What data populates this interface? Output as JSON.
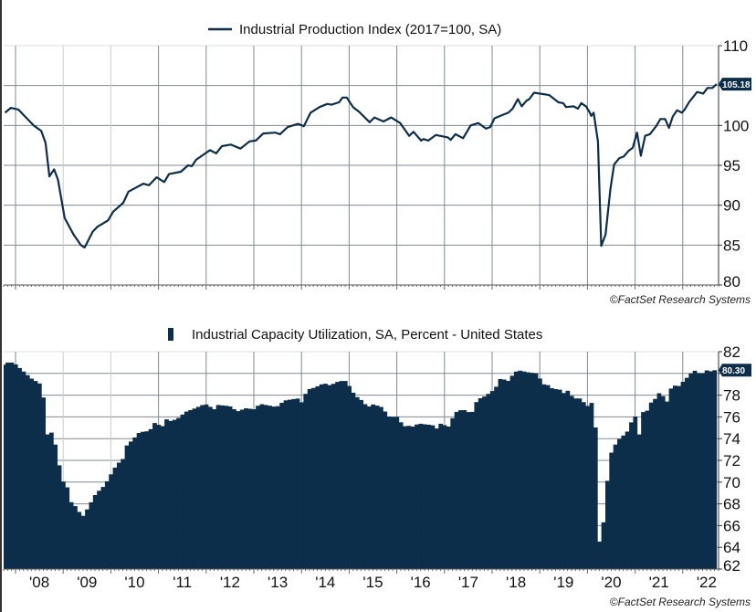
{
  "colors": {
    "series": "#0d2e4a",
    "grid": "#7f8a93",
    "tag_bg": "#0d2e4a"
  },
  "chart_data": [
    {
      "type": "line",
      "title": "Industrial Production Index (2017=100, SA)",
      "legend_placement": "top-center",
      "ylim": [
        80,
        110
      ],
      "yticks": [
        80,
        85,
        90,
        95,
        100,
        105,
        110
      ],
      "xlim": [
        2007.75,
        2022.75
      ],
      "last_value_label": "105.18",
      "copyright": "©FactSet Research Systems",
      "grid": true,
      "points": [
        [
          2007.78,
          101.6
        ],
        [
          2007.9,
          102.2
        ],
        [
          2008.06,
          102.0
        ],
        [
          2008.38,
          100.0
        ],
        [
          2008.54,
          99.3
        ],
        [
          2008.63,
          97.8
        ],
        [
          2008.71,
          93.6
        ],
        [
          2008.81,
          94.5
        ],
        [
          2008.89,
          93.2
        ],
        [
          2009.03,
          88.4
        ],
        [
          2009.21,
          86.4
        ],
        [
          2009.37,
          85.0
        ],
        [
          2009.45,
          84.7
        ],
        [
          2009.62,
          86.7
        ],
        [
          2009.72,
          87.3
        ],
        [
          2009.94,
          88.1
        ],
        [
          2010.05,
          89.2
        ],
        [
          2010.26,
          90.3
        ],
        [
          2010.37,
          91.7
        ],
        [
          2010.68,
          92.7
        ],
        [
          2010.8,
          92.5
        ],
        [
          2010.96,
          93.5
        ],
        [
          2011.12,
          92.9
        ],
        [
          2011.22,
          93.9
        ],
        [
          2011.47,
          94.2
        ],
        [
          2011.62,
          95.0
        ],
        [
          2011.7,
          94.9
        ],
        [
          2011.79,
          95.7
        ],
        [
          2012.08,
          96.9
        ],
        [
          2012.21,
          96.5
        ],
        [
          2012.33,
          97.4
        ],
        [
          2012.52,
          97.6
        ],
        [
          2012.72,
          97.1
        ],
        [
          2012.91,
          98.0
        ],
        [
          2013.04,
          98.1
        ],
        [
          2013.2,
          99.0
        ],
        [
          2013.45,
          99.1
        ],
        [
          2013.55,
          98.9
        ],
        [
          2013.71,
          99.8
        ],
        [
          2013.93,
          100.2
        ],
        [
          2014.05,
          99.9
        ],
        [
          2014.19,
          101.6
        ],
        [
          2014.38,
          102.3
        ],
        [
          2014.54,
          102.7
        ],
        [
          2014.63,
          102.6
        ],
        [
          2014.79,
          102.9
        ],
        [
          2014.86,
          103.5
        ],
        [
          2014.95,
          103.5
        ],
        [
          2015.08,
          102.3
        ],
        [
          2015.21,
          101.7
        ],
        [
          2015.43,
          100.4
        ],
        [
          2015.53,
          101.0
        ],
        [
          2015.72,
          100.5
        ],
        [
          2015.88,
          101.0
        ],
        [
          2016.07,
          100.3
        ],
        [
          2016.26,
          98.7
        ],
        [
          2016.35,
          99.2
        ],
        [
          2016.51,
          98.1
        ],
        [
          2016.56,
          98.3
        ],
        [
          2016.66,
          98.1
        ],
        [
          2016.82,
          98.8
        ],
        [
          2017.07,
          98.5
        ],
        [
          2017.13,
          98.2
        ],
        [
          2017.23,
          98.9
        ],
        [
          2017.39,
          98.4
        ],
        [
          2017.55,
          100.0
        ],
        [
          2017.71,
          100.3
        ],
        [
          2017.87,
          99.6
        ],
        [
          2017.96,
          99.8
        ],
        [
          2018.05,
          100.9
        ],
        [
          2018.21,
          101.3
        ],
        [
          2018.34,
          101.6
        ],
        [
          2018.43,
          102.1
        ],
        [
          2018.54,
          103.3
        ],
        [
          2018.62,
          102.4
        ],
        [
          2018.72,
          103.1
        ],
        [
          2018.78,
          103.3
        ],
        [
          2018.88,
          104.1
        ],
        [
          2019.2,
          103.8
        ],
        [
          2019.39,
          102.9
        ],
        [
          2019.49,
          102.8
        ],
        [
          2019.55,
          102.3
        ],
        [
          2019.71,
          102.4
        ],
        [
          2019.8,
          102.1
        ],
        [
          2019.87,
          102.8
        ],
        [
          2019.97,
          102.4
        ],
        [
          2020.04,
          101.7
        ],
        [
          2020.08,
          101.2
        ],
        [
          2020.13,
          101.6
        ],
        [
          2020.22,
          98.0
        ],
        [
          2020.29,
          84.9
        ],
        [
          2020.38,
          86.3
        ],
        [
          2020.48,
          92.0
        ],
        [
          2020.56,
          95.1
        ],
        [
          2020.67,
          95.9
        ],
        [
          2020.76,
          96.1
        ],
        [
          2020.86,
          96.8
        ],
        [
          2020.95,
          97.2
        ],
        [
          2021.04,
          99.1
        ],
        [
          2021.12,
          96.2
        ],
        [
          2021.21,
          98.7
        ],
        [
          2021.31,
          98.9
        ],
        [
          2021.44,
          99.9
        ],
        [
          2021.53,
          100.8
        ],
        [
          2021.63,
          100.8
        ],
        [
          2021.71,
          99.7
        ],
        [
          2021.79,
          101.1
        ],
        [
          2021.88,
          101.9
        ],
        [
          2021.98,
          101.6
        ],
        [
          2022.04,
          102.0
        ],
        [
          2022.13,
          102.9
        ],
        [
          2022.3,
          104.2
        ],
        [
          2022.43,
          104.0
        ],
        [
          2022.52,
          104.7
        ],
        [
          2022.62,
          104.7
        ],
        [
          2022.71,
          105.18
        ]
      ]
    },
    {
      "type": "bar",
      "title": "Industrial Capacity Utilization, SA, Percent - United States",
      "legend_placement": "top-center",
      "ylim": [
        62,
        82
      ],
      "yticks": [
        62,
        64,
        66,
        68,
        70,
        72,
        74,
        76,
        78,
        80,
        82
      ],
      "xlim": [
        2007.75,
        2022.75
      ],
      "xtick_labels": [
        "'08",
        "'09",
        "'10",
        "'11",
        "'12",
        "'13",
        "'14",
        "'15",
        "'16",
        "'17",
        "'18",
        "'19",
        "'20",
        "'21",
        "'22"
      ],
      "last_value_label": "80.30",
      "copyright": "©FactSet Research Systems",
      "grid": true,
      "points": [
        [
          2007.75,
          80.6
        ],
        [
          2007.83,
          81.0
        ],
        [
          2008.0,
          81.0
        ],
        [
          2008.25,
          80.0
        ],
        [
          2008.38,
          79.5
        ],
        [
          2008.54,
          79.1
        ],
        [
          2008.63,
          77.7
        ],
        [
          2008.7,
          74.3
        ],
        [
          2008.76,
          74.9
        ],
        [
          2008.86,
          73.8
        ],
        [
          2008.95,
          71.7
        ],
        [
          2009.05,
          69.9
        ],
        [
          2009.17,
          69.3
        ],
        [
          2009.21,
          68.1
        ],
        [
          2009.34,
          67.6
        ],
        [
          2009.43,
          66.7
        ],
        [
          2009.53,
          67.4
        ],
        [
          2009.62,
          68.1
        ],
        [
          2009.72,
          68.9
        ],
        [
          2009.91,
          69.7
        ],
        [
          2010.04,
          70.7
        ],
        [
          2010.16,
          71.6
        ],
        [
          2010.29,
          72.1
        ],
        [
          2010.36,
          73.3
        ],
        [
          2010.52,
          74.0
        ],
        [
          2010.64,
          74.6
        ],
        [
          2010.86,
          74.7
        ],
        [
          2010.93,
          75.5
        ],
        [
          2011.12,
          75.1
        ],
        [
          2011.19,
          75.8
        ],
        [
          2011.31,
          75.6
        ],
        [
          2011.51,
          76.0
        ],
        [
          2011.57,
          76.4
        ],
        [
          2011.76,
          76.7
        ],
        [
          2012.02,
          77.2
        ],
        [
          2012.21,
          76.7
        ],
        [
          2012.27,
          77.1
        ],
        [
          2012.53,
          77.0
        ],
        [
          2012.69,
          76.5
        ],
        [
          2012.88,
          76.8
        ],
        [
          2013.04,
          76.7
        ],
        [
          2013.17,
          77.2
        ],
        [
          2013.52,
          76.9
        ],
        [
          2013.68,
          77.5
        ],
        [
          2013.97,
          77.7
        ],
        [
          2014.05,
          77.3
        ],
        [
          2014.16,
          78.5
        ],
        [
          2014.32,
          78.7
        ],
        [
          2014.51,
          79.1
        ],
        [
          2014.64,
          78.9
        ],
        [
          2014.83,
          79.3
        ],
        [
          2014.99,
          79.3
        ],
        [
          2015.08,
          78.5
        ],
        [
          2015.18,
          77.9
        ],
        [
          2015.34,
          77.4
        ],
        [
          2015.43,
          76.8
        ],
        [
          2015.5,
          77.2
        ],
        [
          2015.72,
          76.9
        ],
        [
          2015.88,
          76.0
        ],
        [
          2016.07,
          76.0
        ],
        [
          2016.17,
          75.1
        ],
        [
          2016.26,
          75.2
        ],
        [
          2016.39,
          75.1
        ],
        [
          2016.49,
          75.4
        ],
        [
          2016.84,
          75.2
        ],
        [
          2016.87,
          74.9
        ],
        [
          2016.94,
          75.4
        ],
        [
          2017.13,
          75.1
        ],
        [
          2017.26,
          76.4
        ],
        [
          2017.42,
          76.7
        ],
        [
          2017.61,
          76.3
        ],
        [
          2017.73,
          77.6
        ],
        [
          2017.89,
          77.9
        ],
        [
          2018.05,
          78.4
        ],
        [
          2018.15,
          78.9
        ],
        [
          2018.24,
          79.8
        ],
        [
          2018.34,
          79.1
        ],
        [
          2018.44,
          79.7
        ],
        [
          2018.57,
          80.3
        ],
        [
          2018.79,
          80.1
        ],
        [
          2018.98,
          80.0
        ],
        [
          2019.11,
          79.0
        ],
        [
          2019.24,
          78.9
        ],
        [
          2019.3,
          78.6
        ],
        [
          2019.46,
          78.5
        ],
        [
          2019.53,
          78.1
        ],
        [
          2019.59,
          78.6
        ],
        [
          2019.75,
          77.7
        ],
        [
          2019.88,
          77.7
        ],
        [
          2020.04,
          77.0
        ],
        [
          2020.13,
          77.3
        ],
        [
          2020.23,
          74.4
        ],
        [
          2020.29,
          64.5
        ],
        [
          2020.36,
          65.6
        ],
        [
          2020.45,
          69.8
        ],
        [
          2020.52,
          72.5
        ],
        [
          2020.6,
          73.3
        ],
        [
          2020.73,
          74.1
        ],
        [
          2020.86,
          74.5
        ],
        [
          2020.95,
          75.4
        ],
        [
          2021.03,
          76.3
        ],
        [
          2021.12,
          74.2
        ],
        [
          2021.18,
          76.4
        ],
        [
          2021.31,
          76.6
        ],
        [
          2021.37,
          77.3
        ],
        [
          2021.47,
          77.7
        ],
        [
          2021.56,
          78.3
        ],
        [
          2021.71,
          77.4
        ],
        [
          2021.79,
          78.6
        ],
        [
          2021.85,
          78.9
        ],
        [
          2021.95,
          78.8
        ],
        [
          2022.08,
          79.4
        ],
        [
          2022.17,
          79.8
        ],
        [
          2022.27,
          80.3
        ],
        [
          2022.43,
          79.9
        ],
        [
          2022.52,
          80.3
        ],
        [
          2022.62,
          80.2
        ],
        [
          2022.71,
          80.3
        ]
      ]
    }
  ]
}
